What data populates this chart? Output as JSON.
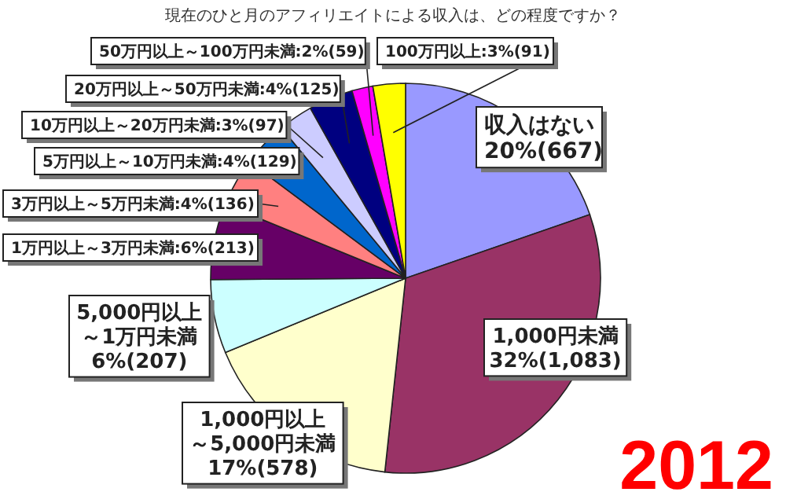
{
  "chart_data": {
    "type": "pie",
    "title": "現在のひと月のアフィリエイトによる収入は、どの程度ですか？",
    "categories": [
      "収入はない",
      "1,000円未満",
      "1,000円以上～5,000円未満",
      "5,000円以上～1万円未満",
      "1万円以上～3万円未満",
      "3万円以上～5万円未満",
      "5万円以上～10万円未満",
      "10万円以上～20万円未満",
      "20万円以上～50万円未満",
      "50万円以上～100万円未満",
      "100万円以上"
    ],
    "values": [
      667,
      1083,
      578,
      207,
      213,
      136,
      129,
      97,
      125,
      59,
      91
    ],
    "value_labels": [
      "20%(667)",
      "32%(1,083)",
      "17%(578)",
      "6%(207)",
      "6%(213)",
      "4%(136)",
      "4%(129)",
      "3%(97)",
      "4%(125)",
      "2%(59)",
      "3%(91)"
    ],
    "colors": [
      "#9999ff",
      "#993366",
      "#ffffcc",
      "#ccffff",
      "#660066",
      "#ff8080",
      "#0066cc",
      "#ccccff",
      "#000080",
      "#ff00ff",
      "#ffff00"
    ],
    "annotations": [
      "2012"
    ]
  }
}
